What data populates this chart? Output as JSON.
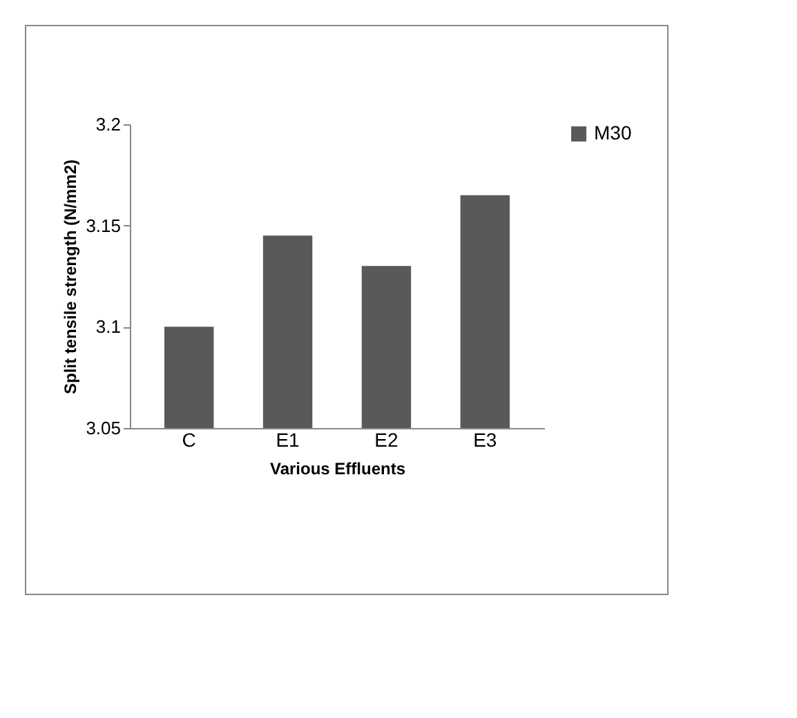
{
  "chart_data": {
    "type": "bar",
    "xlabel": "Various Effluents",
    "ylabel": "Split tensile strength (N/mm2)",
    "categories": [
      "C",
      "E1",
      "E2",
      "E3"
    ],
    "series": [
      {
        "name": "M30",
        "color": "#595959",
        "values": [
          3.1,
          3.145,
          3.13,
          3.165
        ]
      }
    ],
    "ylim": [
      3.05,
      3.2
    ],
    "yticks": [
      3.05,
      3.1,
      3.15,
      3.2
    ],
    "legend": "right"
  }
}
